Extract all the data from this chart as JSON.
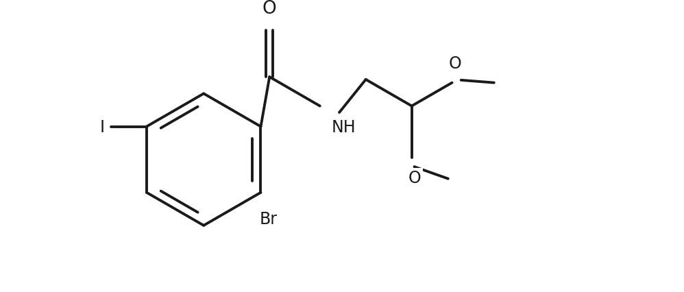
{
  "bg_color": "#ffffff",
  "line_color": "#1a1a1a",
  "line_width": 2.8,
  "font_size": 17,
  "figsize": [
    9.98,
    4.27
  ],
  "dpi": 100,
  "xlim": [
    0,
    9.98
  ],
  "ylim": [
    0,
    4.27
  ]
}
